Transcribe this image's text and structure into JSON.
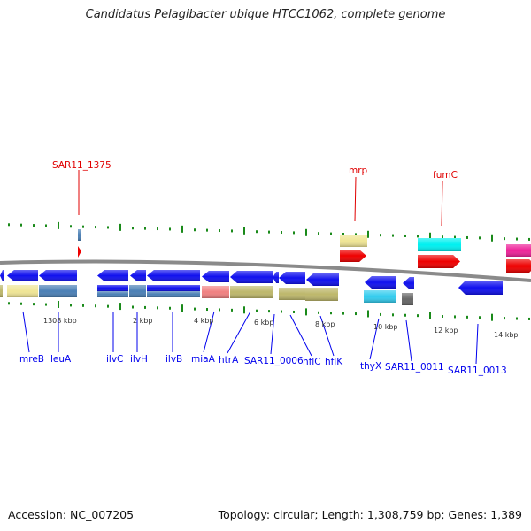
{
  "title": "Candidatus Pelagibacter ubique HTCC1062, complete genome",
  "footer": {
    "accession": "Accession: NC_007205",
    "summary": "Topology: circular; Length: 1,308,759 bp; Genes: 1,389"
  },
  "scale_labels": [
    "1308 kbp",
    "2 kbp",
    "4 kbp",
    "6 kbp",
    "8 kbp",
    "10 kbp",
    "12 kbp",
    "14 kbp"
  ],
  "forward_genes": [
    "SAR11_1375",
    "mrp",
    "fumC"
  ],
  "reverse_genes": [
    "mreB",
    "leuA",
    "ilvC",
    "ilvH",
    "ilvB",
    "miaA",
    "htrA",
    "SAR11_0006",
    "hflC",
    "hflK",
    "thyX",
    "SAR11_0011",
    "SAR11_0013"
  ],
  "colors": {
    "forward_label": "#e00000",
    "reverse_label": "#0000ee",
    "gene_blue": "#1010ee",
    "gene_red": "#ee0000",
    "tick": "#1a8a1a",
    "backbone": "#888888"
  }
}
